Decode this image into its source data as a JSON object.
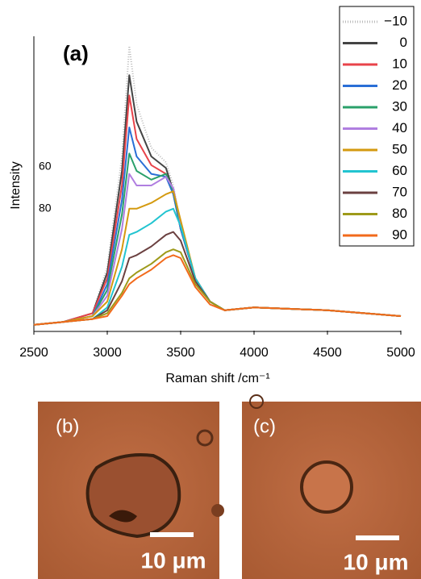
{
  "chart_data": {
    "type": "line",
    "panel_label": "(a)",
    "xlabel": "Raman shift /cm⁻¹",
    "ylabel": "Intensity",
    "annotations": [
      "60",
      "80"
    ],
    "x": [
      2500,
      2700,
      2900,
      3000,
      3100,
      3150,
      3200,
      3300,
      3400,
      3450,
      3500,
      3600,
      3700,
      3800,
      4000,
      4500,
      5000
    ],
    "xlim": [
      2500,
      5000
    ],
    "xticks": [
      2500,
      3000,
      3500,
      4000,
      4500,
      5000
    ],
    "ylim": [
      0,
      100
    ],
    "legend": "upper right",
    "series": [
      {
        "name": "−10",
        "color": "#bbbbbb",
        "style": "dotted",
        "values": [
          2,
          3,
          6,
          22,
          60,
          98,
          78,
          63,
          58,
          50,
          36,
          18,
          10,
          7,
          8,
          7,
          5
        ]
      },
      {
        "name": "0",
        "color": "#444444",
        "values": [
          2,
          3,
          6,
          20,
          55,
          88,
          72,
          60,
          56,
          48,
          35,
          18,
          10,
          7,
          8,
          7,
          5
        ]
      },
      {
        "name": "10",
        "color": "#e8434a",
        "values": [
          2,
          3,
          6,
          18,
          50,
          81,
          66,
          57,
          54,
          47,
          35,
          18,
          10,
          7,
          8,
          7,
          5
        ]
      },
      {
        "name": "20",
        "color": "#2a6fd6",
        "values": [
          2,
          3,
          5,
          16,
          45,
          70,
          60,
          54,
          53,
          47,
          35,
          18,
          10,
          7,
          8,
          7,
          5
        ]
      },
      {
        "name": "30",
        "color": "#2aa06a",
        "values": [
          2,
          3,
          5,
          14,
          40,
          61,
          55,
          52,
          54,
          48,
          36,
          18,
          10,
          7,
          8,
          7,
          5
        ]
      },
      {
        "name": "40",
        "color": "#b07ee0",
        "values": [
          2,
          3,
          5,
          12,
          35,
          54,
          50,
          50,
          53,
          49,
          37,
          18,
          10,
          7,
          8,
          7,
          5
        ]
      },
      {
        "name": "50",
        "color": "#d49a10",
        "values": [
          2,
          3,
          5,
          10,
          28,
          42,
          42,
          44,
          47,
          48,
          38,
          18,
          10,
          7,
          8,
          7,
          5
        ]
      },
      {
        "name": "60",
        "color": "#22c4d0",
        "values": [
          2,
          3,
          4,
          8,
          22,
          33,
          34,
          37,
          41,
          42,
          36,
          18,
          10,
          7,
          8,
          7,
          5
        ]
      },
      {
        "name": "70",
        "color": "#6b4040",
        "values": [
          2,
          3,
          4,
          7,
          17,
          25,
          26,
          29,
          33,
          34,
          31,
          17,
          10,
          7,
          8,
          7,
          5
        ]
      },
      {
        "name": "80",
        "color": "#9e9a1a",
        "values": [
          2,
          3,
          4,
          6,
          13,
          18,
          20,
          23,
          27,
          28,
          27,
          16,
          10,
          7,
          8,
          7,
          5
        ]
      },
      {
        "name": "90",
        "color": "#f26a1b",
        "values": [
          2,
          3,
          4,
          5,
          12,
          16,
          18,
          21,
          25,
          26,
          25,
          15,
          9,
          7,
          8,
          7,
          5
        ]
      }
    ]
  },
  "images": [
    {
      "label": "(b)",
      "scale_bar": "10 μm"
    },
    {
      "label": "(c)",
      "scale_bar": "10 μm"
    }
  ]
}
